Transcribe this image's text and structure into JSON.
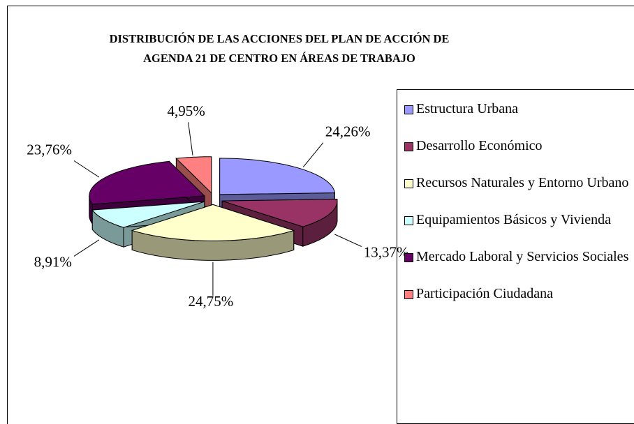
{
  "chart_data": {
    "type": "pie",
    "title": "DISTRIBUCIÓN DE LAS ACCIONES DEL PLAN DE ACCIÓN DE AGENDA 21 DE CENTRO EN ÁREAS DE TRABAJO",
    "categories": [
      "Estructura Urbana",
      "Desarrollo Económico",
      "Recursos Naturales y Entorno Urbano",
      "Equipamientos Básicos y Vivienda",
      "Mercado Laboral y Servicios Sociales",
      "Participación Ciudadana"
    ],
    "values": [
      24.26,
      13.37,
      24.75,
      8.91,
      23.76,
      4.95
    ],
    "value_labels": [
      "24,26%",
      "13,37%",
      "24,75%",
      "8,91%",
      "23,76%",
      "4,95%"
    ],
    "colors": [
      "#9999ff",
      "#993366",
      "#ffffcc",
      "#ccffff",
      "#660066",
      "#ff8080"
    ],
    "legend": "right",
    "three_d": true,
    "exploded": true
  }
}
